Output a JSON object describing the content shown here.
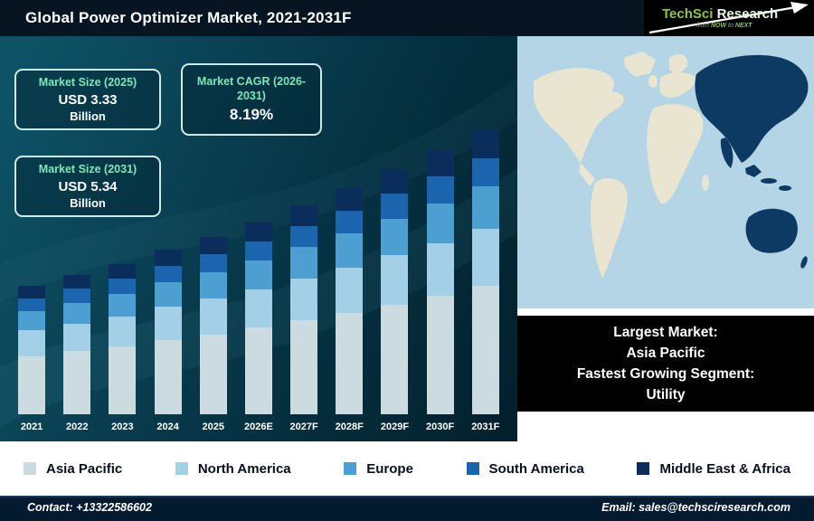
{
  "header": {
    "title": "Global Power Optimizer Market, 2021-2031F",
    "logo": {
      "brand_primary": "TechSci",
      "brand_secondary": "Research",
      "tagline_prefix": "from",
      "tagline_now": "NOW",
      "tagline_to": "to",
      "tagline_next": "NEXT"
    }
  },
  "stats": [
    {
      "title": "Market Size (2025)",
      "value": "USD 3.33",
      "unit": "Billion"
    },
    {
      "title": "Market CAGR (2026-2031)",
      "value": "8.19%"
    },
    {
      "title": "Market Size (2031)",
      "value": "USD 5.34",
      "unit": "Billion"
    }
  ],
  "map_note": {
    "line1": "Largest Market:",
    "line2": "Asia Pacific",
    "line3": "Fastest Growing Segment:",
    "line4": "Utility"
  },
  "chart_data": {
    "type": "bar",
    "stacked": true,
    "title": "Global Power Optimizer Market, 2021-2031F",
    "categories": [
      "2021",
      "2022",
      "2023",
      "2024",
      "2025",
      "2026E",
      "2027F",
      "2028F",
      "2029F",
      "2030F",
      "2031F"
    ],
    "series": [
      {
        "name": "Asia Pacific",
        "color": "#ccdbe0",
        "values": [
          1.09,
          1.18,
          1.27,
          1.39,
          1.5,
          1.62,
          1.76,
          1.9,
          2.06,
          2.22,
          2.4
        ]
      },
      {
        "name": "North America",
        "color": "#a3d0e6",
        "values": [
          0.48,
          0.52,
          0.57,
          0.62,
          0.67,
          0.72,
          0.78,
          0.85,
          0.92,
          0.99,
          1.07
        ]
      },
      {
        "name": "Europe",
        "color": "#4d9fd2",
        "values": [
          0.36,
          0.39,
          0.42,
          0.46,
          0.5,
          0.54,
          0.59,
          0.64,
          0.69,
          0.74,
          0.8
        ]
      },
      {
        "name": "South America",
        "color": "#1a65ae",
        "values": [
          0.24,
          0.26,
          0.28,
          0.31,
          0.33,
          0.36,
          0.39,
          0.42,
          0.46,
          0.5,
          0.53
        ]
      },
      {
        "name": "Middle East & Africa",
        "color": "#0a2d5c",
        "values": [
          0.24,
          0.26,
          0.28,
          0.31,
          0.33,
          0.36,
          0.39,
          0.42,
          0.46,
          0.5,
          0.54
        ]
      }
    ],
    "totals_estimated": [
      2.41,
      2.61,
      2.82,
      3.09,
      3.33,
      3.6,
      3.91,
      4.23,
      4.59,
      4.95,
      5.34
    ],
    "ylim": [
      0,
      5.5
    ],
    "grid": false,
    "y_axis_visible": false,
    "legend_position": "bottom",
    "estimated": true
  },
  "footer": {
    "contact": "Contact: +13322586602",
    "email": "Email: sales@techsciresearch.com"
  }
}
